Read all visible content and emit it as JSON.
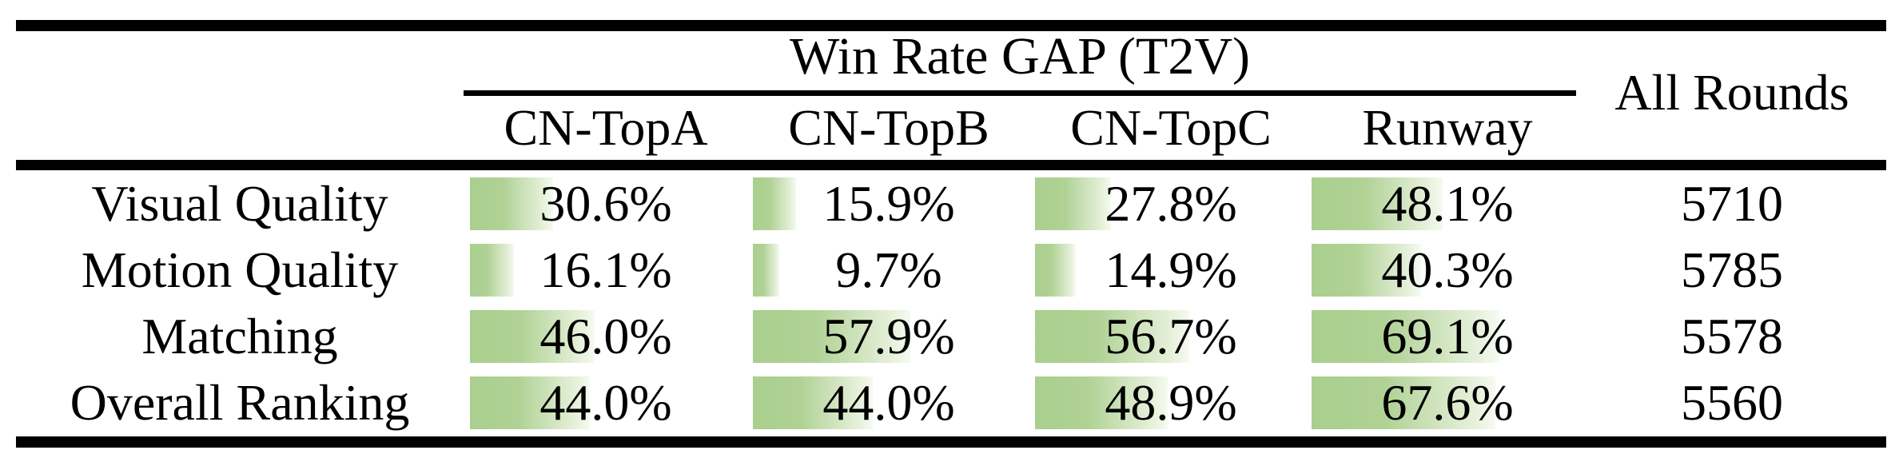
{
  "table": {
    "group_header": "Win Rate GAP (T2V)",
    "all_rounds_header": "All Rounds",
    "columns": [
      {
        "label": "CN-TopA"
      },
      {
        "label": "CN-TopB"
      },
      {
        "label": "CN-TopC"
      },
      {
        "label": "Runway"
      }
    ],
    "rows": [
      {
        "label": "Visual Quality",
        "values": [
          {
            "pct": 30.6,
            "text": "30.6%"
          },
          {
            "pct": 15.9,
            "text": "15.9%"
          },
          {
            "pct": 27.8,
            "text": "27.8%"
          },
          {
            "pct": 48.1,
            "text": "48.1%"
          }
        ],
        "all_rounds": "5710"
      },
      {
        "label": "Motion Quality",
        "values": [
          {
            "pct": 16.1,
            "text": "16.1%"
          },
          {
            "pct": 9.7,
            "text": "9.7%"
          },
          {
            "pct": 14.9,
            "text": "14.9%"
          },
          {
            "pct": 40.3,
            "text": "40.3%"
          }
        ],
        "all_rounds": "5785"
      },
      {
        "label": "Matching",
        "values": [
          {
            "pct": 46.0,
            "text": "46.0%"
          },
          {
            "pct": 57.9,
            "text": "57.9%"
          },
          {
            "pct": 56.7,
            "text": "56.7%"
          },
          {
            "pct": 69.1,
            "text": "69.1%"
          }
        ],
        "all_rounds": "5578"
      },
      {
        "label": "Overall Ranking",
        "values": [
          {
            "pct": 44.0,
            "text": "44.0%"
          },
          {
            "pct": 44.0,
            "text": "44.0%"
          },
          {
            "pct": 48.9,
            "text": "48.9%"
          },
          {
            "pct": 67.6,
            "text": "67.6%"
          }
        ],
        "all_rounds": "5560"
      }
    ]
  },
  "colors": {
    "bar_gradient_start": "#a9cf8e",
    "bar_gradient_end": "#f6faf1",
    "rule_color": "#000000",
    "text_color": "#000000",
    "background": "#ffffff"
  },
  "chart_data": {
    "type": "table",
    "title": "Win Rate GAP (T2V)",
    "categories": [
      "CN-TopA",
      "CN-TopB",
      "CN-TopC",
      "Runway"
    ],
    "series": [
      {
        "name": "Visual Quality",
        "values": [
          30.6,
          15.9,
          27.8,
          48.1
        ],
        "all_rounds": 5710
      },
      {
        "name": "Motion Quality",
        "values": [
          16.1,
          9.7,
          14.9,
          40.3
        ],
        "all_rounds": 5785
      },
      {
        "name": "Matching",
        "values": [
          46.0,
          57.9,
          56.7,
          69.1
        ],
        "all_rounds": 5578
      },
      {
        "name": "Overall Ranking",
        "values": [
          44.0,
          44.0,
          48.9,
          67.6
        ],
        "all_rounds": 5560
      }
    ],
    "value_unit": "%",
    "bar_scale_max": 100,
    "layout": "data bars left-aligned in cells, gradient green fading right"
  }
}
